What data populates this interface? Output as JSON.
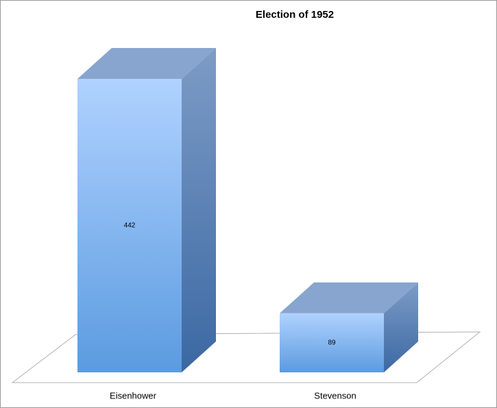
{
  "chart_data": {
    "type": "bar3d",
    "title": "Election of 1952",
    "categories": [
      "Eisenhower",
      "Stevenson"
    ],
    "values": [
      442,
      89
    ],
    "color": "#5b9be0"
  }
}
